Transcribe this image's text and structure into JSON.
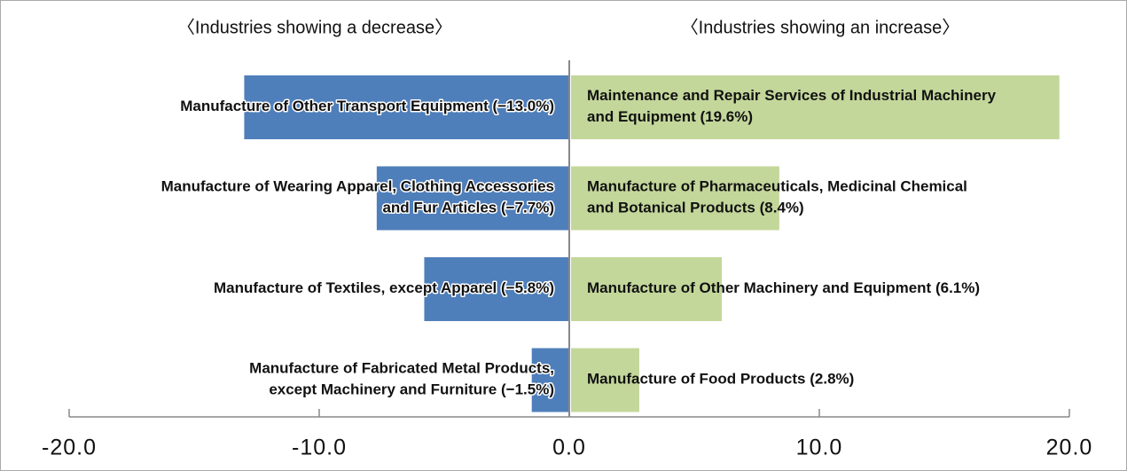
{
  "chart_data": {
    "type": "bar",
    "orientation": "horizontal",
    "series": [
      {
        "name": "〈Industries showing a decrease〉",
        "color": "#4f7fba",
        "categories": [
          [
            "Manufacture of Other Transport Equipment"
          ],
          [
            "Manufacture of Wearing Apparel, Clothing Accessories",
            "and Fur Articles"
          ],
          [
            "Manufacture of Textiles, except Apparel"
          ],
          [
            "Manufacture of Fabricated Metal Products,",
            "except Machinery and Furniture"
          ]
        ],
        "values": [
          -13.0,
          -7.7,
          -5.8,
          -1.5
        ],
        "value_labels": [
          "(−13.0%)",
          "(−7.7%)",
          "(−5.8%)",
          "(−1.5%)"
        ]
      },
      {
        "name": "〈Industries showing an increase〉",
        "color": "#c4d79b",
        "categories": [
          [
            "Maintenance and Repair Services of Industrial Machinery",
            "and Equipment"
          ],
          [
            "Manufacture of Pharmaceuticals, Medicinal Chemical",
            "and Botanical Products"
          ],
          [
            "Manufacture of Other Machinery and Equipment"
          ],
          [
            "Manufacture of Food Products"
          ]
        ],
        "values": [
          19.6,
          8.4,
          6.1,
          2.8
        ],
        "value_labels": [
          "(19.6%)",
          "(8.4%)",
          "(6.1%)",
          "(2.8%)"
        ]
      }
    ],
    "xlim": [
      -20,
      20
    ],
    "xticks": [
      {
        "value": -20,
        "label": "-20.0"
      },
      {
        "value": -10,
        "label": "-10.0"
      },
      {
        "value": 0,
        "label": "0.0"
      },
      {
        "value": 10,
        "label": "10.0"
      },
      {
        "value": 20,
        "label": "20.0"
      }
    ]
  }
}
